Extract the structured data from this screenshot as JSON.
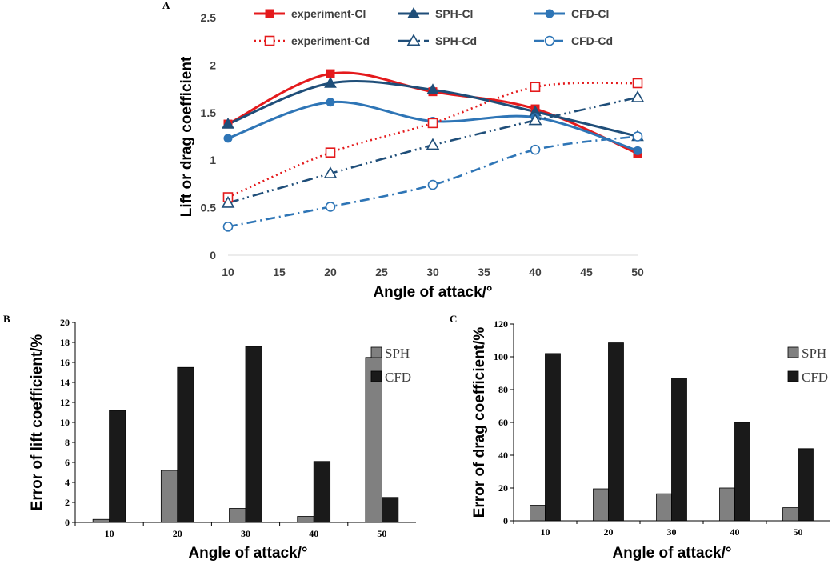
{
  "chart_data": [
    {
      "panel": "A",
      "type": "line",
      "xlabel": "Angle of attack/°",
      "ylabel": "Lift or drag coefficient",
      "x": [
        10,
        20,
        30,
        40,
        50
      ],
      "xlim": [
        10,
        50
      ],
      "ylim": [
        0,
        2.5
      ],
      "xticks": [
        10,
        15,
        20,
        25,
        30,
        35,
        40,
        45,
        50
      ],
      "yticks": [
        0,
        0.5,
        1,
        1.5,
        2,
        2.5
      ],
      "ytick_labels": [
        "0",
        "0.5",
        "1",
        "1.5",
        "2",
        "2.5"
      ],
      "legend_position": "top",
      "series": [
        {
          "name": "experiment-Cl",
          "values": [
            1.38,
            1.91,
            1.72,
            1.54,
            1.07
          ],
          "color": "#e41a1c",
          "dash": "solid",
          "smooth": true,
          "marker": "square-filled"
        },
        {
          "name": "SPH-Cl",
          "values": [
            1.38,
            1.81,
            1.74,
            1.51,
            1.25
          ],
          "color": "#1f4e79",
          "dash": "solid",
          "smooth": true,
          "marker": "triangle-filled"
        },
        {
          "name": "CFD-Cl",
          "values": [
            1.23,
            1.61,
            1.41,
            1.45,
            1.1
          ],
          "color": "#2e75b6",
          "dash": "solid",
          "smooth": true,
          "marker": "circle-filled"
        },
        {
          "name": "experiment-Cd",
          "values": [
            0.61,
            1.08,
            1.39,
            1.77,
            1.81
          ],
          "color": "#e41a1c",
          "dash": "dot",
          "smooth": true,
          "marker": "square-open"
        },
        {
          "name": "SPH-Cd",
          "values": [
            0.55,
            0.86,
            1.16,
            1.42,
            1.66
          ],
          "color": "#1f4e79",
          "dash": "dashdotdot",
          "smooth": false,
          "marker": "triangle-open"
        },
        {
          "name": "CFD-Cd",
          "values": [
            0.3,
            0.51,
            0.74,
            1.11,
            1.25
          ],
          "color": "#2e75b6",
          "dash": "dashdot",
          "smooth": true,
          "marker": "circle-open"
        }
      ]
    },
    {
      "panel": "B",
      "type": "bar",
      "xlabel": "Angle of attack/°",
      "ylabel": "Error of lift coefficient/%",
      "categories": [
        "10",
        "20",
        "30",
        "40",
        "50"
      ],
      "ylim": [
        0,
        20
      ],
      "yticks": [
        0,
        2,
        4,
        6,
        8,
        10,
        12,
        14,
        16,
        18,
        20
      ],
      "legend_position": "top-right",
      "series": [
        {
          "name": "SPH",
          "values": [
            0.3,
            5.2,
            1.4,
            0.6,
            16.5
          ],
          "color": "#808080"
        },
        {
          "name": "CFD",
          "values": [
            11.2,
            15.5,
            17.6,
            6.1,
            2.5
          ],
          "color": "#1a1a1a"
        }
      ]
    },
    {
      "panel": "C",
      "type": "bar",
      "xlabel": "Angle of attack/°",
      "ylabel": "Error of drag coefficient/%",
      "categories": [
        "10",
        "20",
        "30",
        "40",
        "50"
      ],
      "ylim": [
        0,
        120
      ],
      "yticks": [
        0,
        20,
        40,
        60,
        80,
        100,
        120
      ],
      "legend_position": "top-right",
      "series": [
        {
          "name": "SPH",
          "values": [
            9.5,
            19.5,
            16.5,
            20,
            8
          ],
          "color": "#808080"
        },
        {
          "name": "CFD",
          "values": [
            102,
            108.5,
            87,
            60,
            44
          ],
          "color": "#1a1a1a"
        }
      ]
    }
  ]
}
